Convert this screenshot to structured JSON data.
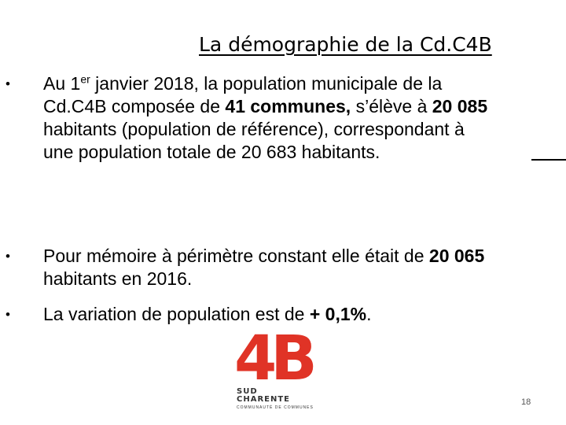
{
  "slide": {
    "title": "La démographie de la Cd.C4B",
    "bullet_char": "•",
    "bullets": [
      {
        "p1": "Au 1",
        "p1_sup": "er",
        "p2": " janvier 2018, la population municipale de la Cd.C4B composée de ",
        "b1": "41 communes,",
        "p3": " s’élève à ",
        "b2": "20 085",
        "p4": " habitants (population de référence), correspondant à une population totale de 20 683 habitants."
      },
      {
        "p1": "Pour mémoire à périmètre constant elle était de ",
        "b1": "20 065",
        "p2": " habitants en 2016."
      },
      {
        "p1": "La variation de population est de ",
        "b1": "+ 0,1%",
        "p2": "."
      }
    ],
    "logo": {
      "main": "4B",
      "line1": "SUD",
      "line2": "CHARENTE",
      "line3": "COMMUNAUTÉ DE COMMUNES",
      "color": "#e03326"
    },
    "page_number": "18"
  }
}
